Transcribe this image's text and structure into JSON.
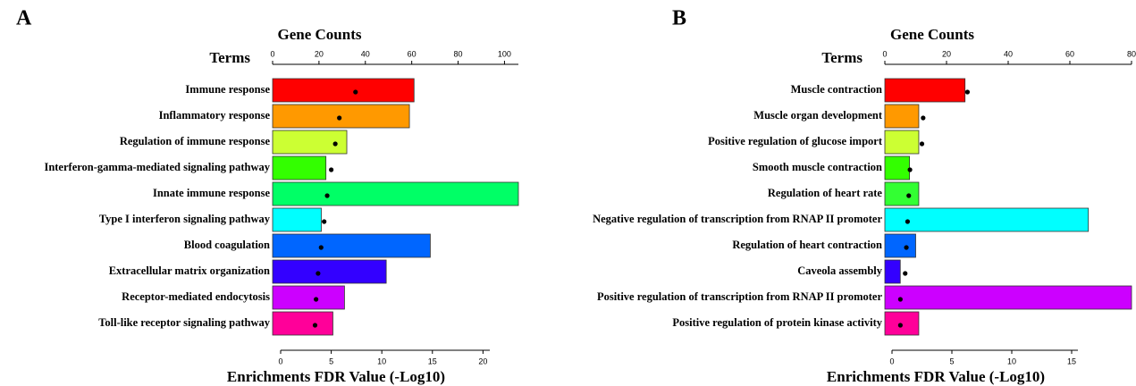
{
  "chart_data": [
    {
      "type": "bar",
      "panel": "A",
      "title": "Gene Counts",
      "category_label": "Terms",
      "xlabel": "Enrichments FDR Value (-Log10)",
      "categories": [
        "Immune response",
        "Inflammatory response",
        "Regulation of immune response",
        "Interferon-gamma-mediated signaling pathway",
        "Innate immune response",
        "Type I interferon signaling pathway",
        "Blood coagulation",
        "Extracellular matrix organization",
        "Receptor-mediated endocytosis",
        "Toll-like receptor signaling pathway"
      ],
      "series": [
        {
          "name": "Gene Counts",
          "values": [
            61,
            59,
            32,
            23,
            106,
            21,
            68,
            49,
            31,
            26
          ],
          "colors": [
            "#ff0000",
            "#ff9900",
            "#ccff33",
            "#33ff00",
            "#00ff66",
            "#00ffff",
            "#0066ff",
            "#3300ff",
            "#cc00ff",
            "#ff0099"
          ]
        },
        {
          "name": "Enrichments FDR Value (-Log10)",
          "values": [
            7.4,
            5.8,
            5.4,
            5.0,
            4.6,
            4.3,
            4.0,
            3.7,
            3.5,
            3.4
          ],
          "color": "#000000"
        }
      ],
      "x2lim": [
        0,
        106
      ],
      "x2ticks": [
        0,
        20,
        40,
        60,
        80,
        100
      ],
      "xlim": [
        0,
        23.5
      ],
      "xticks": [
        0,
        5,
        10,
        15,
        20
      ]
    },
    {
      "type": "bar",
      "panel": "B",
      "title": "Gene Counts",
      "category_label": "Terms",
      "xlabel": "Enrichments FDR Value (-Log10)",
      "categories": [
        "Muscle contraction",
        "Muscle organ development",
        "Positive regulation of glucose import",
        "Smooth muscle contraction",
        "Regulation of heart rate",
        "Negative regulation of transcription from RNAP II promoter",
        "Regulation of heart contraction",
        "Caveola assembly",
        "Positive regulation of transcription from RNAP II promoter",
        "Positive regulation of protein kinase activity"
      ],
      "series": [
        {
          "name": "Gene Counts",
          "values": [
            26,
            11,
            11,
            8,
            11,
            66,
            10,
            5,
            80,
            11
          ],
          "colors": [
            "#ff0000",
            "#ff9900",
            "#ccff33",
            "#33ff00",
            "#33ff33",
            "#00ffff",
            "#0066ff",
            "#3300ff",
            "#cc00ff",
            "#ff0099"
          ]
        },
        {
          "name": "Enrichments FDR Value (-Log10)",
          "values": [
            6.3,
            2.6,
            2.5,
            1.5,
            1.4,
            1.3,
            1.2,
            1.1,
            0.7,
            0.7
          ],
          "color": "#000000"
        }
      ],
      "x2lim": [
        0,
        80
      ],
      "x2ticks": [
        0,
        20,
        40,
        60,
        80
      ],
      "xlim": [
        0,
        20
      ],
      "xticks": [
        0,
        5,
        10,
        15
      ]
    }
  ]
}
